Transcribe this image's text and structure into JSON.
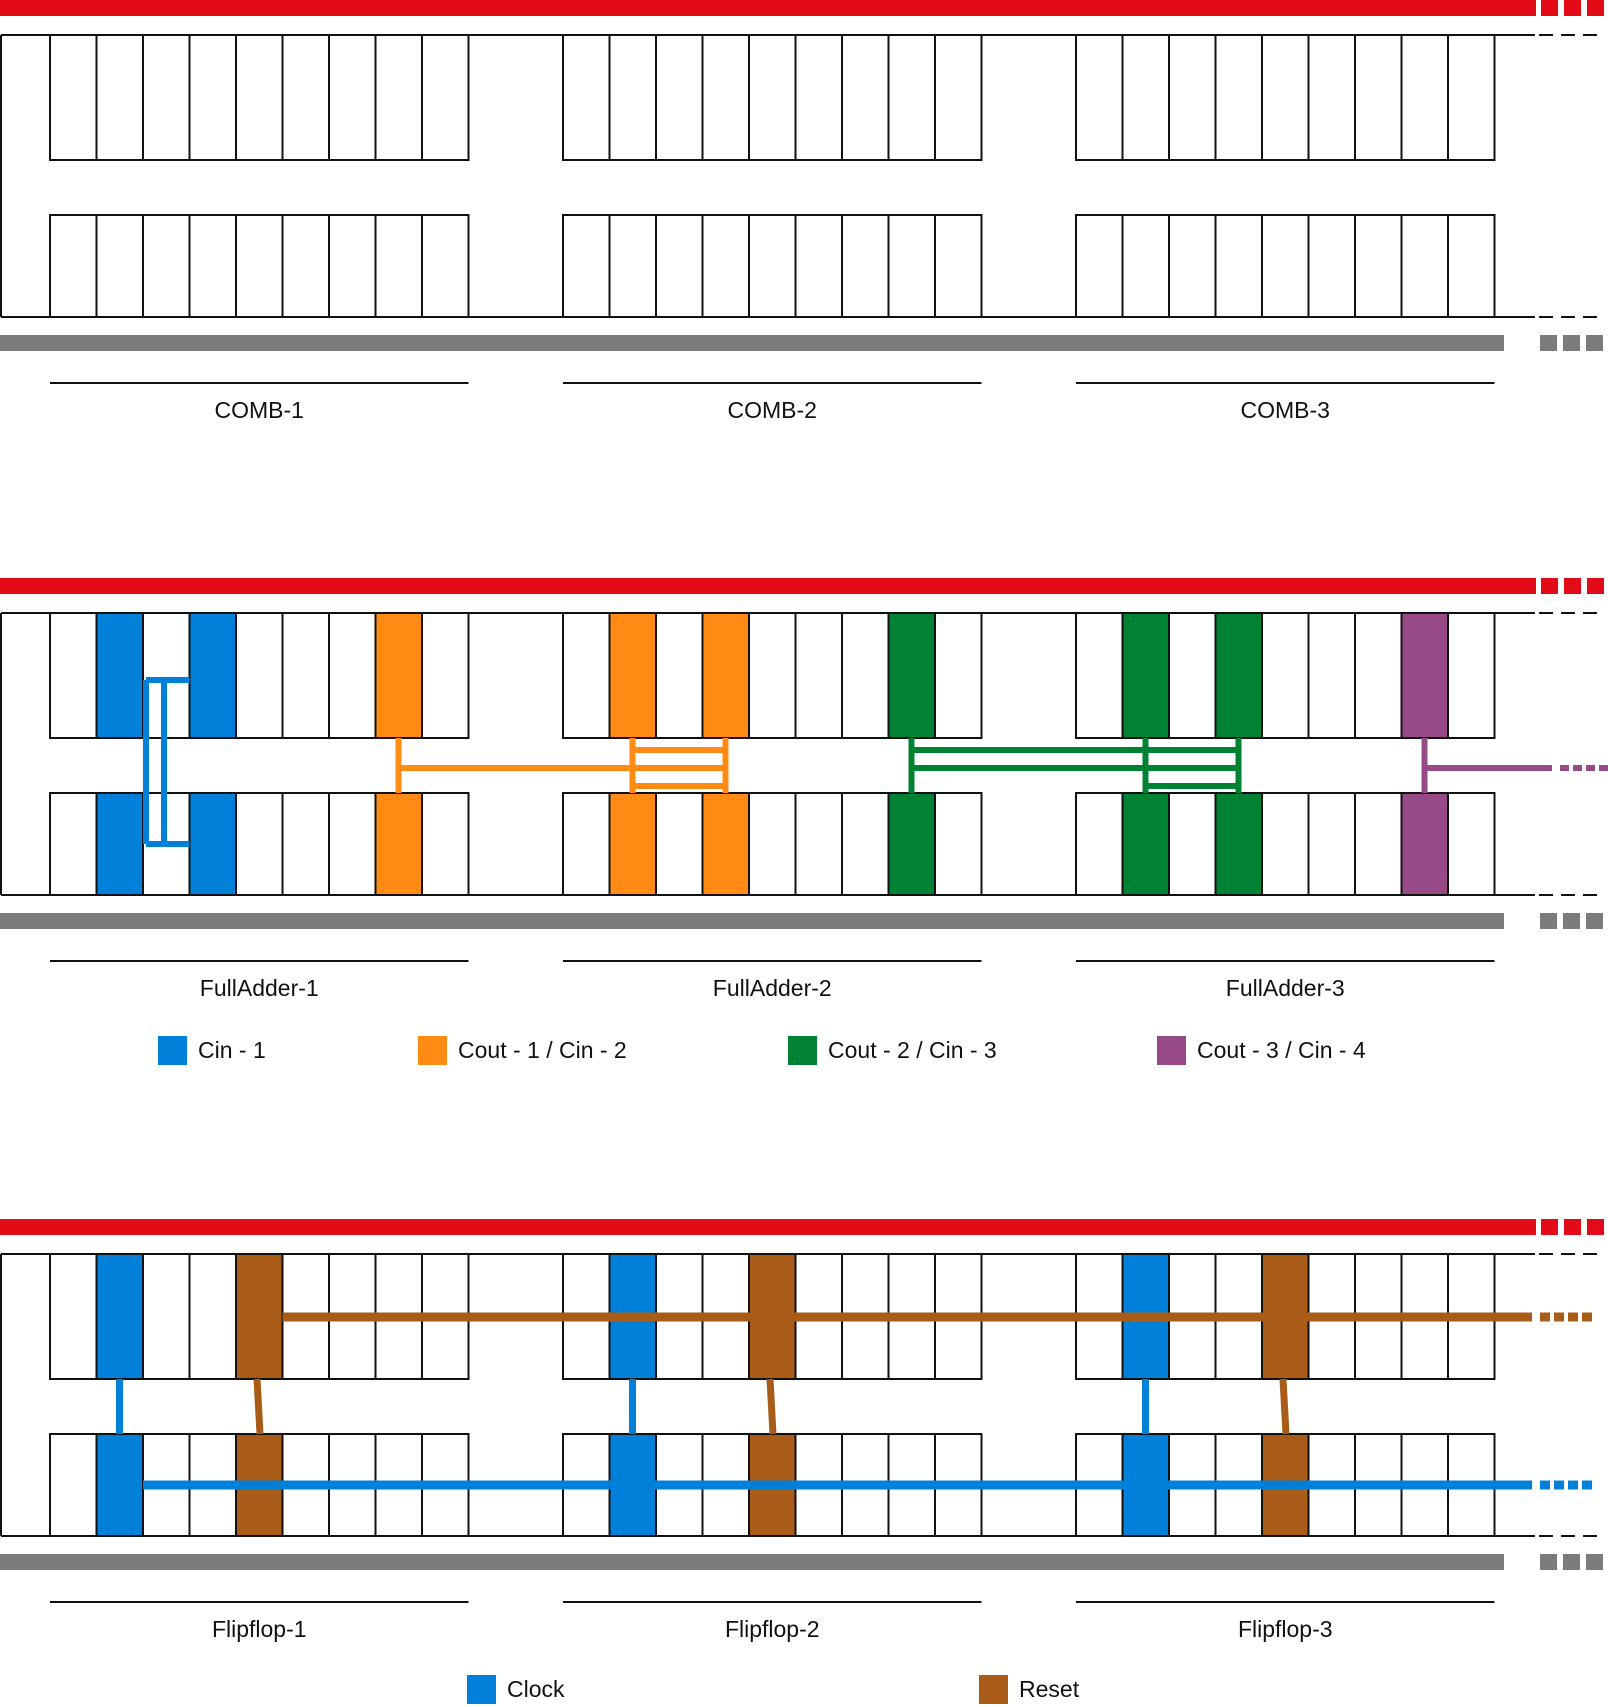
{
  "colors": {
    "rail_top": "#e20b17",
    "rail_bottom": "#7b7b7b",
    "cin1": "#0080d8",
    "cout1_cin2": "#ff8a14",
    "cout2_cin3": "#008234",
    "cout3_cin4": "#974b86",
    "clock": "#0080d8",
    "reset": "#a85c18",
    "outline": "#111111"
  },
  "panels": [
    {
      "id": "comb",
      "blocks": [
        "COMB-1",
        "COMB-2",
        "COMB-3"
      ],
      "legend": []
    },
    {
      "id": "fulladder",
      "blocks": [
        "FullAdder-1",
        "FullAdder-2",
        "FullAdder-3"
      ],
      "legend": [
        {
          "label": "Cin - 1",
          "color": "#0080d8"
        },
        {
          "label": "Cout - 1 / Cin - 2",
          "color": "#ff8a14"
        },
        {
          "label": "Cout - 2 / Cin - 3",
          "color": "#008234"
        },
        {
          "label": "Cout - 3 / Cin - 4",
          "color": "#974b86"
        }
      ]
    },
    {
      "id": "flipflop",
      "blocks": [
        "Flipflop-1",
        "Flipflop-2",
        "Flipflop-3"
      ],
      "legend": [
        {
          "label": "Clock",
          "color": "#0080d8"
        },
        {
          "label": "Reset",
          "color": "#a85c18"
        }
      ]
    }
  ]
}
